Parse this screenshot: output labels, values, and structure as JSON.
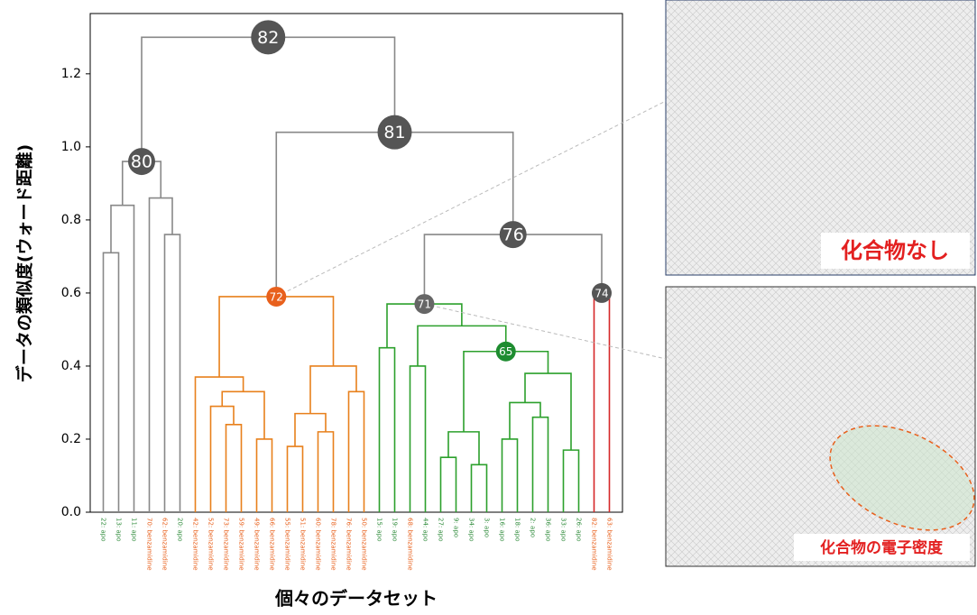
{
  "chart_data": {
    "type": "dendrogram",
    "ylabel": "データの類似度(ウォード距離)",
    "xlabel": "個々のデータセット",
    "ylim": [
      0,
      1.365
    ],
    "yticks": [
      {
        "value": 0,
        "label": "0.0"
      },
      0.2,
      0.4,
      0.6,
      0.8,
      {
        "value": 1,
        "label": "1.0"
      },
      1.2
    ],
    "leaves": [
      {
        "label": "22: apo",
        "color": "#2e8b3a"
      },
      {
        "label": "13: apo",
        "color": "#2e8b3a"
      },
      {
        "label": "11: apo",
        "color": "#2e8b3a"
      },
      {
        "label": "70: benzamidine",
        "color": "#e8601c"
      },
      {
        "label": "62: benzamidine",
        "color": "#e8601c"
      },
      {
        "label": "20: apo",
        "color": "#2e8b3a"
      },
      {
        "label": "42: benzamidine",
        "color": "#e8601c"
      },
      {
        "label": "52: benzamidine",
        "color": "#e8601c"
      },
      {
        "label": "73: benzamidine",
        "color": "#e8601c"
      },
      {
        "label": "59: benzamidine",
        "color": "#e8601c"
      },
      {
        "label": "49: benzamidine",
        "color": "#e8601c"
      },
      {
        "label": "66: benzamidine",
        "color": "#e8601c"
      },
      {
        "label": "55: benzamidine",
        "color": "#e8601c"
      },
      {
        "label": "51: benzamidine",
        "color": "#e8601c"
      },
      {
        "label": "60: benzamidine",
        "color": "#e8601c"
      },
      {
        "label": "78: benzamidine",
        "color": "#e8601c"
      },
      {
        "label": "76: benzamidine",
        "color": "#e8601c"
      },
      {
        "label": "50: benzamidine",
        "color": "#e8601c"
      },
      {
        "label": "15: apo",
        "color": "#2e8b3a"
      },
      {
        "label": "19: apo",
        "color": "#2e8b3a"
      },
      {
        "label": "68: benzamidine",
        "color": "#e8601c"
      },
      {
        "label": "44: apo",
        "color": "#2e8b3a"
      },
      {
        "label": "27: apo",
        "color": "#2e8b3a"
      },
      {
        "label": "9: apo",
        "color": "#2e8b3a"
      },
      {
        "label": "34: apo",
        "color": "#2e8b3a"
      },
      {
        "label": "3: apo",
        "color": "#2e8b3a"
      },
      {
        "label": "16: apo",
        "color": "#2e8b3a"
      },
      {
        "label": "18: apo",
        "color": "#2e8b3a"
      },
      {
        "label": "2: apo",
        "color": "#2e8b3a"
      },
      {
        "label": "36: apo",
        "color": "#2e8b3a"
      },
      {
        "label": "33: apo",
        "color": "#2e8b3a"
      },
      {
        "label": "26: apo",
        "color": "#2e8b3a"
      },
      {
        "label": "82: benzamidine",
        "color": "#e8601c"
      },
      {
        "label": "63: benzamidine",
        "color": "#e8601c"
      }
    ],
    "merges": [
      {
        "left": 0,
        "right": 1,
        "height": 0.71,
        "color": "#888888"
      },
      {
        "left": 34,
        "right": 2,
        "height": 0.84,
        "color": "#888888"
      },
      {
        "left": 4,
        "right": 5,
        "height": 0.76,
        "color": "#888888"
      },
      {
        "left": 3,
        "right": 36,
        "height": 0.86,
        "color": "#888888"
      },
      {
        "left": 35,
        "right": 37,
        "height": 0.96,
        "color": "#888888",
        "label": "80",
        "node_color": "#555555"
      },
      {
        "left": 8,
        "right": 9,
        "height": 0.24,
        "color": "#e8801c"
      },
      {
        "left": 7,
        "right": 39,
        "height": 0.29,
        "color": "#e8801c"
      },
      {
        "left": 10,
        "right": 11,
        "height": 0.2,
        "color": "#e8801c"
      },
      {
        "left": 40,
        "right": 41,
        "height": 0.33,
        "color": "#e8801c"
      },
      {
        "left": 6,
        "right": 42,
        "height": 0.37,
        "color": "#e8801c"
      },
      {
        "left": 12,
        "right": 13,
        "height": 0.18,
        "color": "#e8801c"
      },
      {
        "left": 14,
        "right": 15,
        "height": 0.22,
        "color": "#e8801c"
      },
      {
        "left": 44,
        "right": 45,
        "height": 0.27,
        "color": "#e8801c"
      },
      {
        "left": 16,
        "right": 17,
        "height": 0.33,
        "color": "#e8801c"
      },
      {
        "left": 46,
        "right": 47,
        "height": 0.4,
        "color": "#e8801c"
      },
      {
        "left": 43,
        "right": 48,
        "height": 0.59,
        "color": "#e8801c",
        "label": "72",
        "node_color": "#e8601c"
      },
      {
        "left": 18,
        "right": 19,
        "height": 0.45,
        "color": "#2ca02c"
      },
      {
        "left": 20,
        "right": 21,
        "height": 0.4,
        "color": "#2ca02c"
      },
      {
        "left": 22,
        "right": 23,
        "height": 0.15,
        "color": "#2ca02c"
      },
      {
        "left": 24,
        "right": 25,
        "height": 0.13,
        "color": "#2ca02c"
      },
      {
        "left": 52,
        "right": 53,
        "height": 0.22,
        "color": "#2ca02c"
      },
      {
        "left": 26,
        "right": 27,
        "height": 0.2,
        "color": "#2ca02c"
      },
      {
        "left": 28,
        "right": 29,
        "height": 0.26,
        "color": "#2ca02c"
      },
      {
        "left": 55,
        "right": 56,
        "height": 0.3,
        "color": "#2ca02c"
      },
      {
        "left": 30,
        "right": 31,
        "height": 0.17,
        "color": "#2ca02c"
      },
      {
        "left": 57,
        "right": 58,
        "height": 0.38,
        "color": "#2ca02c"
      },
      {
        "left": 54,
        "right": 59,
        "height": 0.44,
        "color": "#2ca02c",
        "label": "65",
        "node_color": "#1e8c30"
      },
      {
        "left": 51,
        "right": 60,
        "height": 0.51,
        "color": "#2ca02c"
      },
      {
        "left": 50,
        "right": 61,
        "height": 0.57,
        "color": "#2ca02c",
        "label": "71",
        "node_color": "#666666"
      },
      {
        "left": 32,
        "right": 33,
        "height": 0.6,
        "color": "#d62728",
        "label": "74",
        "node_color": "#555555"
      },
      {
        "left": 62,
        "right": 63,
        "height": 0.76,
        "color": "#888888",
        "label": "76",
        "node_color": "#555555"
      },
      {
        "left": 49,
        "right": 64,
        "height": 1.04,
        "color": "#888888",
        "label": "81",
        "node_color": "#555555"
      },
      {
        "left": 38,
        "right": 65,
        "height": 1.3,
        "color": "#888888",
        "label": "82",
        "node_color": "#555555"
      }
    ]
  },
  "panels": [
    {
      "caption": "化合物なし"
    },
    {
      "caption": "化合物の電子密度"
    }
  ]
}
